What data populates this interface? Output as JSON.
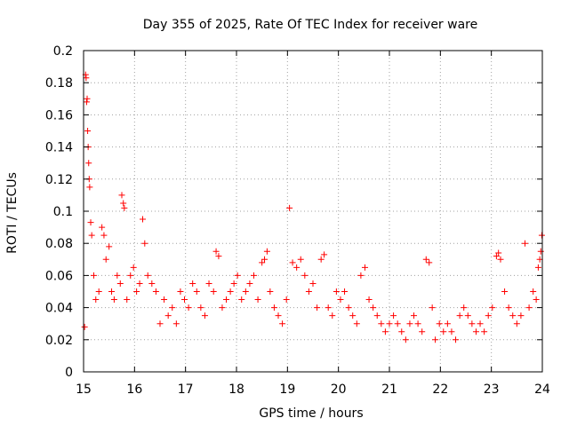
{
  "chart_data": {
    "type": "scatter",
    "title": "Day 355 of 2025, Rate Of TEC Index for receiver ware",
    "xlabel": "GPS time / hours",
    "ylabel": "ROTI / TECUs",
    "xlim": [
      15,
      24
    ],
    "ylim": [
      0,
      0.2
    ],
    "x_ticks": [
      "15",
      "16",
      "17",
      "18",
      "19",
      "20",
      "21",
      "22",
      "23",
      "24"
    ],
    "y_ticks": [
      "0",
      "0.02",
      "0.04",
      "0.06",
      "0.08",
      "0.1",
      "0.12",
      "0.14",
      "0.16",
      "0.18",
      "0.2"
    ],
    "grid": true,
    "marker": "plus",
    "color": "#ff0000",
    "series": [
      {
        "name": "ROTI",
        "x": [
          15.02,
          15.04,
          15.05,
          15.06,
          15.07,
          15.08,
          15.09,
          15.1,
          15.11,
          15.12,
          15.14,
          15.16,
          15.2,
          15.24,
          15.3,
          15.36,
          15.4,
          15.44,
          15.5,
          15.55,
          15.6,
          15.66,
          15.72,
          15.75,
          15.78,
          15.8,
          15.85,
          15.92,
          15.98,
          16.04,
          16.1,
          16.16,
          16.2,
          16.26,
          16.34,
          16.42,
          16.5,
          16.58,
          16.66,
          16.74,
          16.82,
          16.9,
          16.98,
          17.06,
          17.14,
          17.22,
          17.3,
          17.38,
          17.46,
          17.55,
          17.6,
          17.65,
          17.72,
          17.8,
          17.88,
          17.95,
          18.02,
          18.1,
          18.18,
          18.26,
          18.34,
          18.42,
          18.5,
          18.55,
          18.6,
          18.66,
          18.74,
          18.82,
          18.9,
          18.98,
          19.04,
          19.1,
          19.18,
          19.26,
          19.34,
          19.42,
          19.5,
          19.58,
          19.66,
          19.72,
          19.8,
          19.88,
          19.96,
          20.04,
          20.12,
          20.2,
          20.28,
          20.36,
          20.44,
          20.52,
          20.6,
          20.68,
          20.76,
          20.84,
          20.92,
          21.0,
          21.08,
          21.16,
          21.24,
          21.32,
          21.4,
          21.48,
          21.56,
          21.64,
          21.72,
          21.78,
          21.84,
          21.9,
          21.98,
          22.06,
          22.14,
          22.22,
          22.3,
          22.38,
          22.46,
          22.54,
          22.62,
          22.7,
          22.78,
          22.86,
          22.94,
          23.02,
          23.1,
          23.14,
          23.18,
          23.26,
          23.34,
          23.42,
          23.5,
          23.58,
          23.66,
          23.74,
          23.82,
          23.88,
          23.92,
          23.95,
          23.97,
          23.99
        ],
        "y": [
          0.028,
          0.185,
          0.183,
          0.168,
          0.17,
          0.15,
          0.14,
          0.13,
          0.12,
          0.115,
          0.093,
          0.085,
          0.06,
          0.045,
          0.05,
          0.09,
          0.085,
          0.07,
          0.078,
          0.05,
          0.045,
          0.06,
          0.055,
          0.11,
          0.105,
          0.102,
          0.045,
          0.06,
          0.065,
          0.05,
          0.055,
          0.095,
          0.08,
          0.06,
          0.055,
          0.05,
          0.03,
          0.045,
          0.035,
          0.04,
          0.03,
          0.05,
          0.045,
          0.04,
          0.055,
          0.05,
          0.04,
          0.035,
          0.055,
          0.05,
          0.075,
          0.072,
          0.04,
          0.045,
          0.05,
          0.055,
          0.06,
          0.045,
          0.05,
          0.055,
          0.06,
          0.045,
          0.068,
          0.07,
          0.075,
          0.05,
          0.04,
          0.035,
          0.03,
          0.045,
          0.102,
          0.068,
          0.065,
          0.07,
          0.06,
          0.05,
          0.055,
          0.04,
          0.07,
          0.073,
          0.04,
          0.035,
          0.05,
          0.045,
          0.05,
          0.04,
          0.035,
          0.03,
          0.06,
          0.065,
          0.045,
          0.04,
          0.035,
          0.03,
          0.025,
          0.03,
          0.035,
          0.03,
          0.025,
          0.02,
          0.03,
          0.035,
          0.03,
          0.025,
          0.07,
          0.068,
          0.04,
          0.02,
          0.03,
          0.025,
          0.03,
          0.025,
          0.02,
          0.035,
          0.04,
          0.035,
          0.03,
          0.025,
          0.03,
          0.025,
          0.035,
          0.04,
          0.072,
          0.074,
          0.07,
          0.05,
          0.04,
          0.035,
          0.03,
          0.035,
          0.08,
          0.04,
          0.05,
          0.045,
          0.065,
          0.07,
          0.075,
          0.085
        ]
      }
    ]
  }
}
